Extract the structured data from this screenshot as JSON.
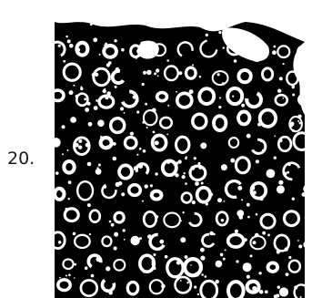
{
  "figure": {
    "number_label": "20."
  },
  "image": {
    "subject": "binary-cell-texture",
    "background_color": "#000000",
    "foreground_color": "#ffffff"
  }
}
